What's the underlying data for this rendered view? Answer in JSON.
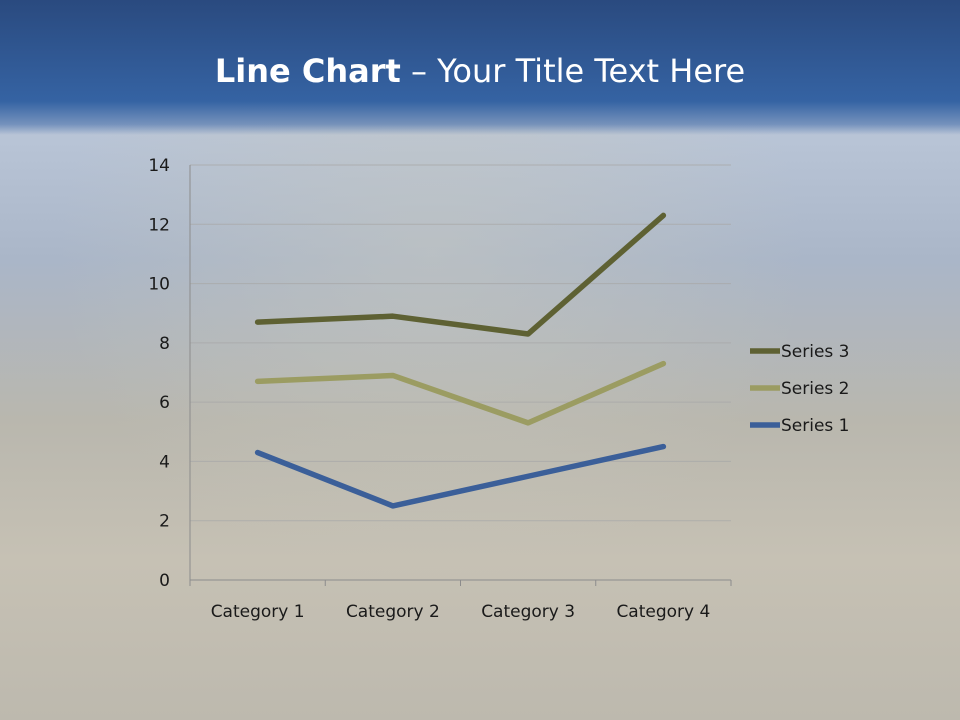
{
  "slide": {
    "title_bold": "Line Chart",
    "title_rest": " – Your Title Text Here"
  },
  "chart_data": {
    "type": "line",
    "stacked": true,
    "title": "",
    "xlabel": "",
    "ylabel": "",
    "categories": [
      "Category 1",
      "Category 2",
      "Category 3",
      "Category 4"
    ],
    "ylim": [
      0,
      14
    ],
    "yticks": [
      0,
      2,
      4,
      6,
      8,
      10,
      12,
      14
    ],
    "grid": true,
    "legend_position": "right",
    "series": [
      {
        "name": "Series 1",
        "values": [
          4.3,
          2.5,
          3.5,
          4.5
        ],
        "color": "#3b5f99"
      },
      {
        "name": "Series 2",
        "values": [
          2.4,
          4.4,
          1.8,
          2.8
        ],
        "color": "#9b9c62"
      },
      {
        "name": "Series 3",
        "values": [
          2.0,
          2.0,
          3.0,
          5.0
        ],
        "color": "#5e6133"
      }
    ]
  }
}
